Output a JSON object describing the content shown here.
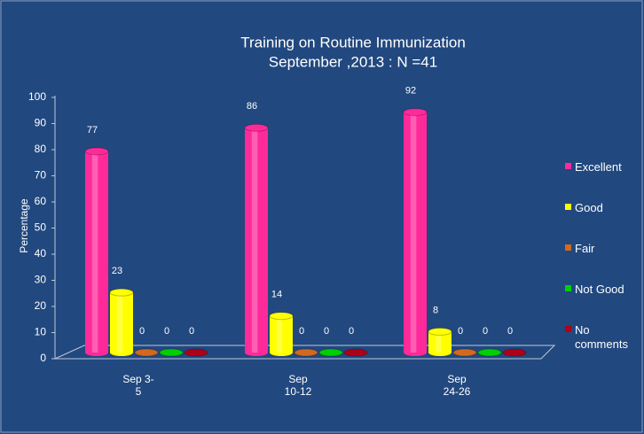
{
  "chart_data": {
    "type": "bar3d",
    "title": "Training on Routine Immunization",
    "subtitle": "September ,2013 : N =41",
    "y_label": "Percentage",
    "categories": [
      "Sep 3-5",
      "Sep 10-12",
      "Sep 24-26"
    ],
    "series": [
      {
        "name": "Excellent",
        "color": "#ff2a9a",
        "values": [
          77,
          86,
          92
        ]
      },
      {
        "name": "Good",
        "color": "#ffff00",
        "values": [
          23,
          14,
          8
        ]
      },
      {
        "name": "Fair",
        "color": "#d2691e",
        "values": [
          0,
          0,
          0
        ]
      },
      {
        "name": "Not Good",
        "color": "#00d000",
        "values": [
          0,
          0,
          0
        ]
      },
      {
        "name": "No comments",
        "color": "#b00018",
        "values": [
          0,
          0,
          0
        ]
      }
    ],
    "ylim": [
      0,
      100
    ],
    "yticks": [
      0,
      10,
      20,
      30,
      40,
      50,
      60,
      70,
      80,
      90,
      100
    ]
  }
}
